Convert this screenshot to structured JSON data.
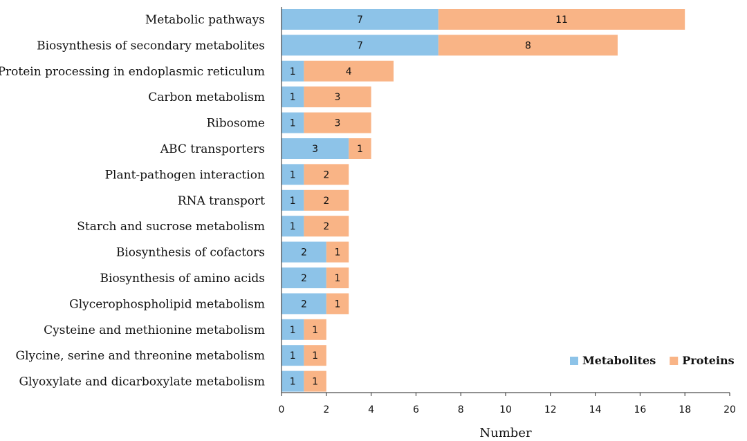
{
  "chart_data": {
    "type": "bar",
    "orientation": "horizontal",
    "stacked": true,
    "categories": [
      "Metabolic pathways",
      "Biosynthesis of secondary metabolites",
      "Protein processing in endoplasmic reticulum",
      "Carbon metabolism",
      "Ribosome",
      "ABC transporters",
      "Plant-pathogen interaction",
      "RNA transport",
      "Starch and sucrose metabolism",
      "Biosynthesis of cofactors",
      "Biosynthesis of amino acids",
      "Glycerophospholipid metabolism",
      "Cysteine and methionine metabolism",
      "Glycine, serine and threonine metabolism",
      "Glyoxylate and dicarboxylate metabolism"
    ],
    "series": [
      {
        "name": "Metabolites",
        "color": "#8DC3E8",
        "values": [
          7,
          7,
          1,
          1,
          1,
          3,
          1,
          1,
          1,
          2,
          2,
          2,
          1,
          1,
          1
        ]
      },
      {
        "name": "Proteins",
        "color": "#F9B486",
        "values": [
          11,
          8,
          4,
          3,
          3,
          1,
          2,
          2,
          2,
          1,
          1,
          1,
          1,
          1,
          1
        ]
      }
    ],
    "title": "",
    "xlabel": "Number",
    "ylabel": "",
    "xlim": [
      0,
      20
    ],
    "xticks": [
      0,
      2,
      4,
      6,
      8,
      10,
      12,
      14,
      16,
      18,
      20
    ],
    "grid": false,
    "legend": "bottom-right"
  }
}
